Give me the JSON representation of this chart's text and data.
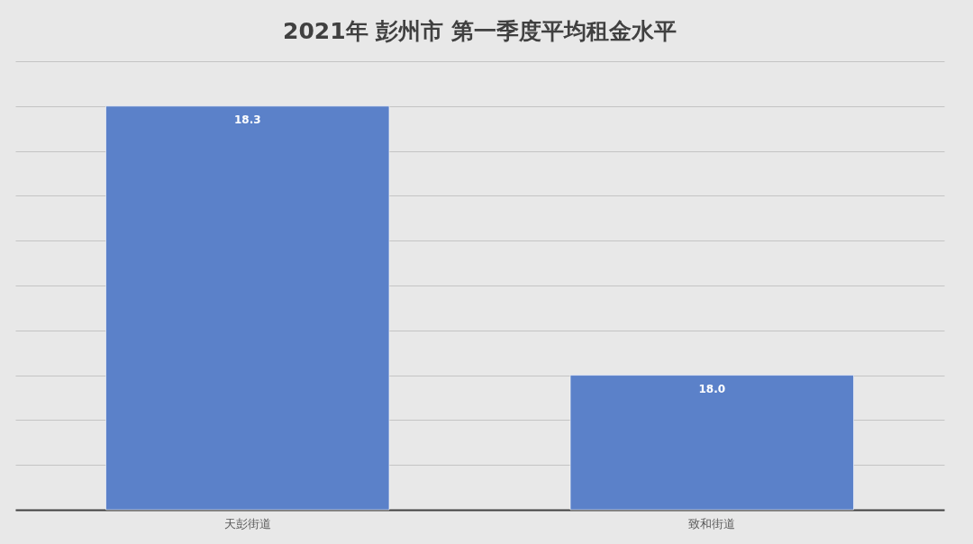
{
  "chart_data": {
    "type": "bar",
    "title": "2021年 彭州市 第一季度平均租金水平",
    "categories": [
      "天彭街道",
      "致和街道"
    ],
    "values": [
      18.3,
      18.0
    ],
    "color": "#5b81c9",
    "value_labels": [
      "18.3",
      "18.0"
    ],
    "ylim": [
      17.85,
      18.35
    ],
    "yticks": [
      {
        "value": 17.85,
        "label": null
      },
      {
        "value": 17.9,
        "label": null
      },
      {
        "value": 17.95,
        "label": null
      },
      {
        "value": 18.0,
        "label": null
      },
      {
        "value": 18.05,
        "label": null
      },
      {
        "value": 18.1,
        "label": null
      },
      {
        "value": 18.15,
        "label": null
      },
      {
        "value": 18.2,
        "label": null
      },
      {
        "value": 18.25,
        "label": null
      },
      {
        "value": 18.3,
        "label": null
      },
      {
        "value": 18.35,
        "label": null
      }
    ],
    "grid": "y",
    "tick_labels": "x"
  }
}
